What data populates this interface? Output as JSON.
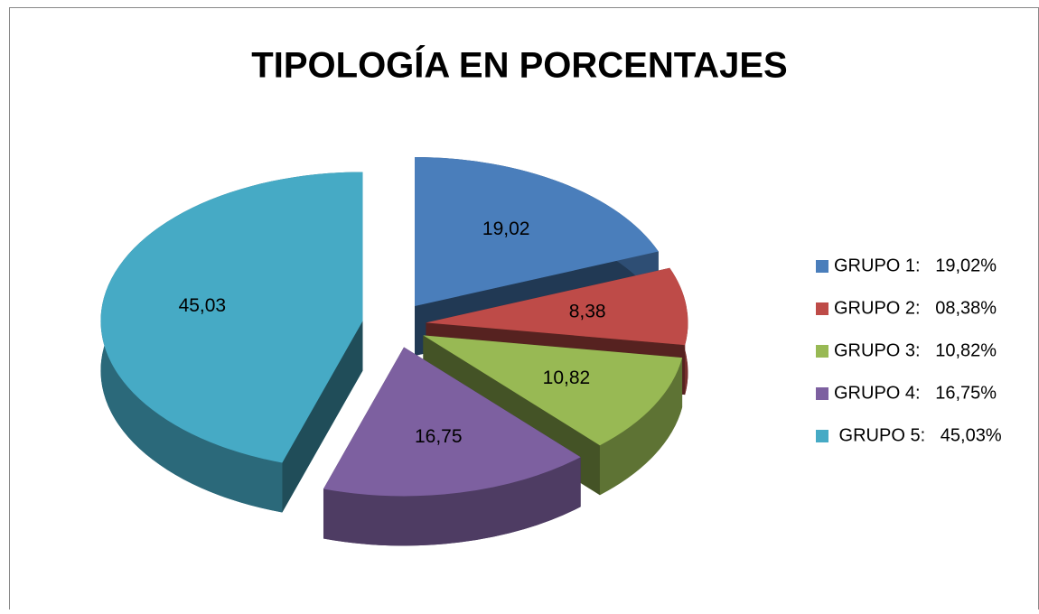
{
  "chart_data": {
    "type": "pie",
    "title": "TIPOLOGÍA EN PORCENTAJES",
    "categories": [
      "GRUPO 1:   19,02%",
      "GRUPO 2:   08,38%",
      "GRUPO 3:   10,82%",
      "GRUPO 4:   16,75%",
      " GRUPO 5:   45,03%"
    ],
    "values": [
      19.02,
      8.38,
      10.82,
      16.75,
      45.03
    ],
    "value_labels": [
      "19,02",
      "8,38",
      "10,82",
      "16,75",
      "45,03"
    ],
    "colors": [
      "#4a7ebb",
      "#be4b48",
      "#98b954",
      "#7d60a0",
      "#46aac5"
    ],
    "legend": "right"
  }
}
